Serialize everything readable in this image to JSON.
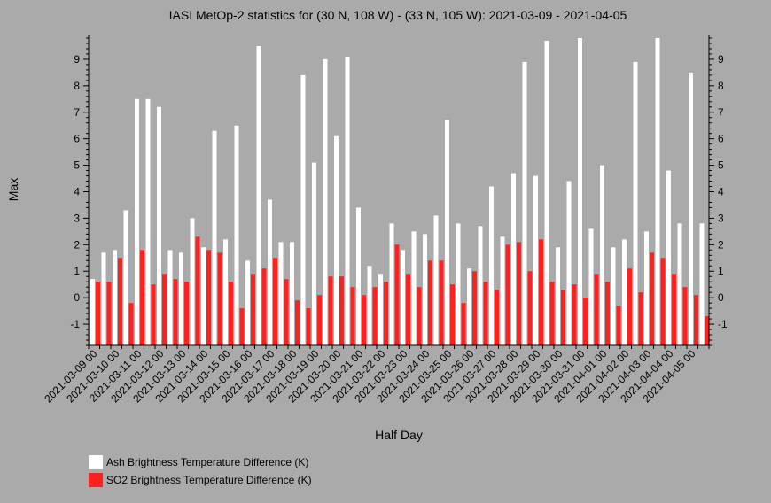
{
  "chart_data": {
    "type": "bar",
    "title": "IASI MetOp-2 statistics for (30 N, 108 W) - (33 N, 105 W): 2021-03-09 - 2021-04-05",
    "xlabel": "Half Day",
    "ylabel": "Max",
    "ylim": [
      -1.8,
      9.9
    ],
    "yticks": [
      -1,
      0,
      1,
      2,
      3,
      4,
      5,
      6,
      7,
      8,
      9
    ],
    "x_tick_labels": [
      "2021-03-09 00",
      "2021-03-10 00",
      "2021-03-11 00",
      "2021-03-12 00",
      "2021-03-13 00",
      "2021-03-14 00",
      "2021-03-15 00",
      "2021-03-16 00",
      "2021-03-17 00",
      "2021-03-18 00",
      "2021-03-19 00",
      "2021-03-20 00",
      "2021-03-21 00",
      "2021-03-22 00",
      "2021-03-23 00",
      "2021-03-24 00",
      "2021-03-25 00",
      "2021-03-26 00",
      "2021-03-27 00",
      "2021-03-28 00",
      "2021-03-29 00",
      "2021-03-30 00",
      "2021-03-31 00",
      "2021-04-01 00",
      "2021-04-02 00",
      "2021-04-03 00",
      "2021-04-04 00",
      "2021-04-05 00"
    ],
    "series": [
      {
        "name": "Ash Brightness Temperature Difference (K)",
        "color": "#ffffff",
        "values": [
          0.7,
          1.7,
          1.8,
          3.3,
          7.5,
          7.5,
          7.2,
          1.8,
          1.7,
          3.0,
          1.9,
          6.3,
          2.2,
          6.5,
          1.4,
          9.5,
          3.7,
          2.1,
          2.1,
          8.4,
          5.1,
          9.0,
          6.1,
          9.1,
          3.4,
          1.2,
          0.9,
          2.8,
          1.8,
          2.5,
          2.4,
          3.1,
          6.7,
          2.8,
          1.1,
          2.7,
          4.2,
          2.3,
          4.7,
          8.9,
          4.6,
          9.7,
          1.9,
          4.4,
          9.8,
          2.6,
          5.0,
          1.9,
          2.2,
          8.9,
          2.5,
          9.8,
          4.8,
          2.8,
          8.5,
          2.8
        ]
      },
      {
        "name": "SO2 Brightness Temperature Difference (K)",
        "color": "#ff2020",
        "values": [
          0.6,
          0.6,
          1.5,
          -0.2,
          1.8,
          0.5,
          0.9,
          0.7,
          0.6,
          2.3,
          1.8,
          1.7,
          0.6,
          -0.4,
          0.9,
          1.1,
          1.5,
          0.7,
          -0.1,
          -0.4,
          0.1,
          0.8,
          0.8,
          0.4,
          0.1,
          0.4,
          0.6,
          2.0,
          0.9,
          0.4,
          1.4,
          1.4,
          0.5,
          -0.2,
          1.0,
          0.6,
          0.3,
          2.0,
          2.1,
          1.0,
          2.2,
          0.6,
          0.3,
          0.5,
          0.0,
          0.9,
          0.6,
          -0.3,
          1.1,
          0.2,
          1.7,
          1.5,
          0.9,
          0.4,
          0.1,
          -0.7
        ]
      }
    ],
    "legend_position": "bottom-left",
    "grid": false
  }
}
